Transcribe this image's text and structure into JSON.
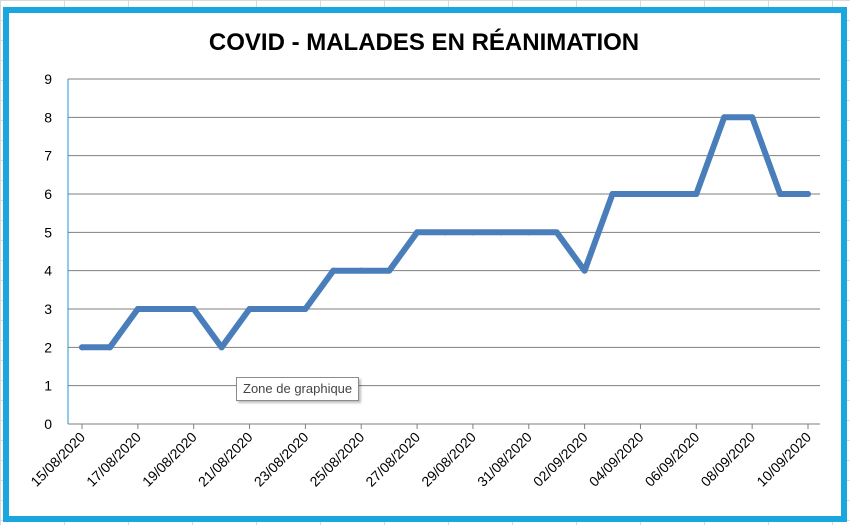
{
  "chart_data": {
    "type": "line",
    "title": "COVID - MALADES EN RÉANIMATION",
    "xlabel": "",
    "ylabel": "",
    "ylim": [
      0,
      9
    ],
    "yticks": [
      0,
      1,
      2,
      3,
      4,
      5,
      6,
      7,
      8,
      9
    ],
    "x": [
      "15/08/2020",
      "16/08/2020",
      "17/08/2020",
      "18/08/2020",
      "19/08/2020",
      "20/08/2020",
      "21/08/2020",
      "22/08/2020",
      "23/08/2020",
      "24/08/2020",
      "25/08/2020",
      "26/08/2020",
      "27/08/2020",
      "28/08/2020",
      "29/08/2020",
      "30/08/2020",
      "31/08/2020",
      "01/09/2020",
      "02/09/2020",
      "03/09/2020",
      "04/09/2020",
      "05/09/2020",
      "06/09/2020",
      "07/09/2020",
      "08/09/2020",
      "09/09/2020",
      "10/09/2020"
    ],
    "x_tick_labels": [
      "15/08/2020",
      "17/08/2020",
      "19/08/2020",
      "21/08/2020",
      "23/08/2020",
      "25/08/2020",
      "27/08/2020",
      "29/08/2020",
      "31/08/2020",
      "02/09/2020",
      "04/09/2020",
      "06/09/2020",
      "08/09/2020",
      "10/09/2020"
    ],
    "series": [
      {
        "values": [
          2,
          2,
          3,
          3,
          3,
          2,
          3,
          3,
          3,
          4,
          4,
          4,
          5,
          5,
          5,
          5,
          5,
          5,
          4,
          6,
          6,
          6,
          6,
          8,
          8,
          6,
          6
        ]
      }
    ],
    "grid": true,
    "legend": "none",
    "colors": {
      "line": "#4a7ebb",
      "grid": "#7f7f7f",
      "frame": "#1aa7e0"
    }
  },
  "tooltip": {
    "text": "Zone de graphique"
  }
}
